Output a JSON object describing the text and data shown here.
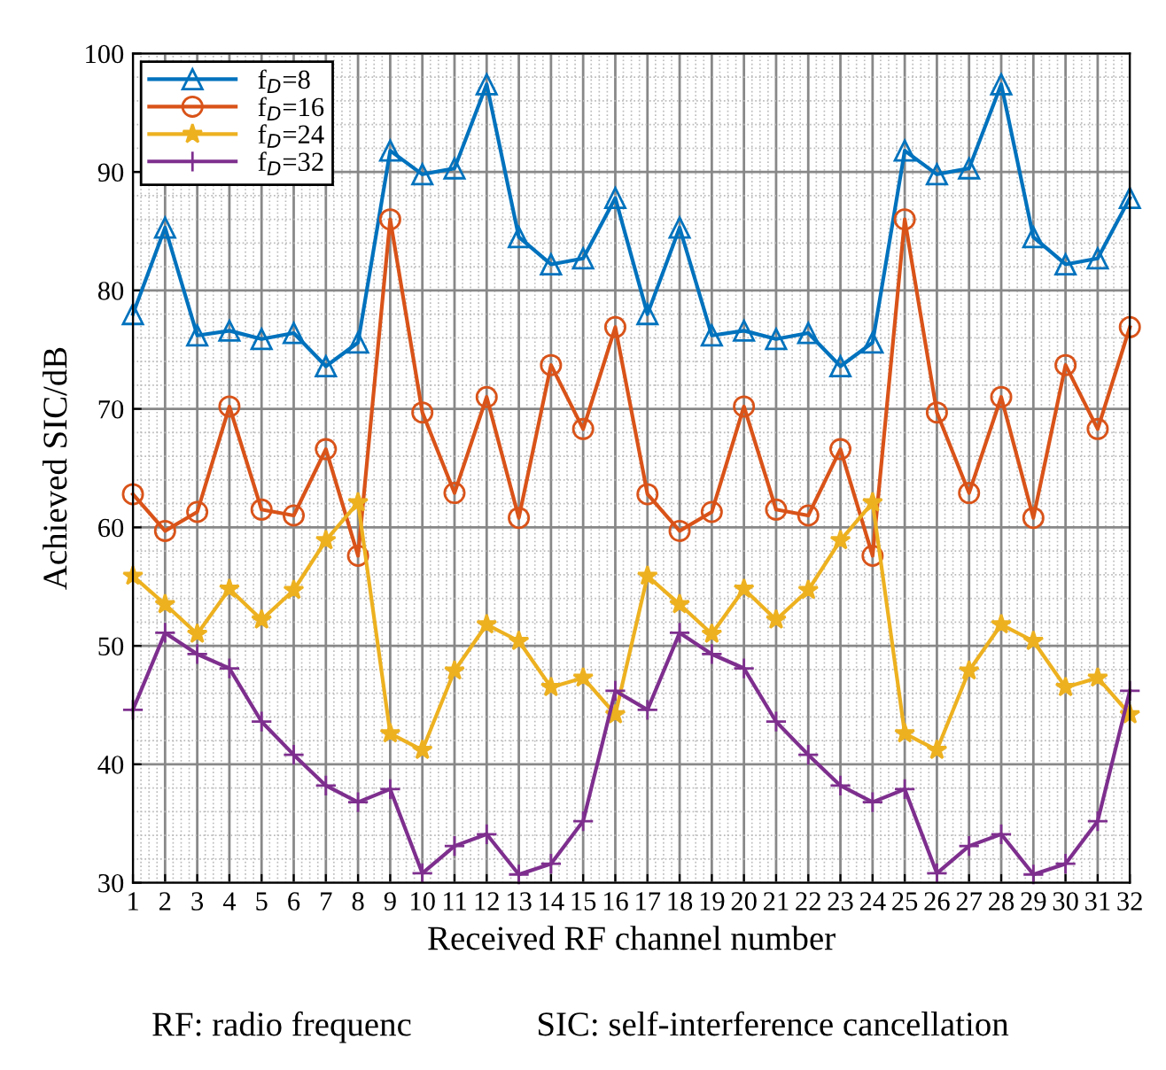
{
  "chart_data": {
    "type": "line",
    "xlabel": "Received RF channel number",
    "ylabel": "Achieved SIC/dB",
    "x": [
      1,
      2,
      3,
      4,
      5,
      6,
      7,
      8,
      9,
      10,
      11,
      12,
      13,
      14,
      15,
      16,
      17,
      18,
      19,
      20,
      21,
      22,
      23,
      24,
      25,
      26,
      27,
      28,
      29,
      30,
      31,
      32
    ],
    "series": [
      {
        "name": "f$_{D}$=8",
        "color": "#0072bd",
        "marker": "triangle",
        "values": [
          78.0,
          85.3,
          76.2,
          76.6,
          75.9,
          76.4,
          73.6,
          75.6,
          91.8,
          89.8,
          90.3,
          97.4,
          84.5,
          82.2,
          82.7,
          87.8,
          78.0,
          85.3,
          76.2,
          76.6,
          75.9,
          76.4,
          73.6,
          75.6,
          91.8,
          89.8,
          90.3,
          97.4,
          84.5,
          82.2,
          82.7,
          87.8
        ]
      },
      {
        "name": "f$_{D}$=16",
        "color": "#d95319",
        "marker": "circle",
        "values": [
          62.8,
          59.7,
          61.3,
          70.2,
          61.5,
          61.0,
          66.6,
          57.6,
          86.0,
          69.7,
          62.9,
          71.0,
          60.8,
          73.7,
          68.3,
          76.9,
          62.8,
          59.7,
          61.3,
          70.2,
          61.5,
          61.0,
          66.6,
          57.6,
          86.0,
          69.7,
          62.9,
          71.0,
          60.8,
          73.7,
          68.3,
          76.9
        ]
      },
      {
        "name": "f$_{D}$=24",
        "color": "#edb120",
        "marker": "star",
        "values": [
          55.9,
          53.5,
          51.0,
          54.8,
          52.2,
          54.7,
          58.9,
          62.1,
          42.6,
          41.2,
          47.9,
          51.8,
          50.4,
          46.5,
          47.3,
          44.2,
          55.9,
          53.5,
          51.0,
          54.8,
          52.2,
          54.7,
          58.9,
          62.1,
          42.6,
          41.2,
          47.9,
          51.8,
          50.4,
          46.5,
          47.3,
          44.2
        ]
      },
      {
        "name": "f$_{D}$=32",
        "color": "#7e2f8e",
        "marker": "cross",
        "values": [
          44.6,
          51.1,
          49.3,
          48.1,
          43.6,
          40.8,
          38.2,
          36.8,
          37.9,
          30.8,
          33.1,
          34.1,
          30.7,
          31.6,
          35.2,
          46.2,
          44.6,
          51.1,
          49.3,
          48.1,
          43.6,
          40.8,
          38.2,
          36.8,
          37.9,
          30.8,
          33.1,
          34.1,
          30.7,
          31.6,
          35.2,
          46.2
        ]
      }
    ],
    "xlim": [
      1,
      32
    ],
    "xticks": [
      1,
      2,
      3,
      4,
      5,
      6,
      7,
      8,
      9,
      10,
      11,
      12,
      13,
      14,
      15,
      16,
      17,
      18,
      19,
      20,
      21,
      22,
      23,
      24,
      25,
      26,
      27,
      28,
      29,
      30,
      31,
      32
    ],
    "ylim": [
      30,
      100
    ],
    "yticks": [
      30,
      40,
      50,
      60,
      70,
      80,
      90,
      100
    ],
    "grid": true,
    "legend": "top left",
    "line_style": "solid",
    "annotations": [
      "RF: radio frequenc",
      "SIC: self-interference cancellation"
    ]
  }
}
